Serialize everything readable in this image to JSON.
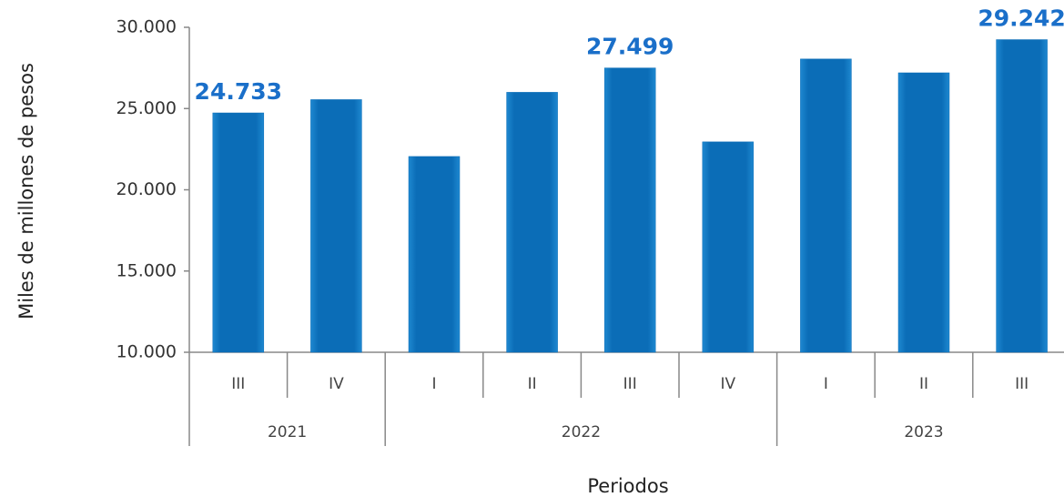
{
  "chart_data": {
    "type": "bar",
    "y_label": "Miles de millones de pesos",
    "x_label": "Periodos",
    "categories": [
      "III",
      "IV",
      "I",
      "II",
      "III",
      "IV",
      "I",
      "II",
      "III"
    ],
    "groups": [
      {
        "name": "2021",
        "size": 2
      },
      {
        "name": "2022",
        "size": 4
      },
      {
        "name": "2023",
        "size": 3
      }
    ],
    "values": [
      24733,
      25550,
      22050,
      26000,
      27499,
      22950,
      28050,
      27200,
      29242
    ],
    "value_labels": [
      "24.733",
      null,
      null,
      null,
      "27.499",
      null,
      null,
      null,
      "29.242"
    ],
    "color": "#0b6db7",
    "ylim": [
      10000,
      30000
    ],
    "yticks": [
      {
        "value": 10000,
        "label": "10.000"
      },
      {
        "value": 15000,
        "label": "15.000"
      },
      {
        "value": 20000,
        "label": "20.000"
      },
      {
        "value": 25000,
        "label": "25.000"
      },
      {
        "value": 30000,
        "label": "30.000"
      }
    ],
    "grid": false
  }
}
